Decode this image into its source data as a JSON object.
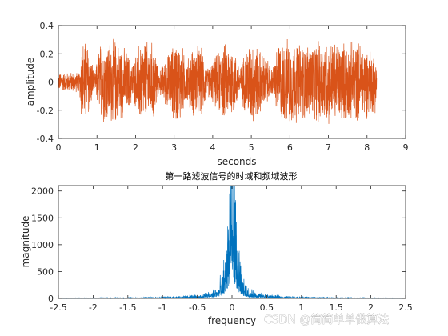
{
  "chart_data": [
    {
      "type": "line",
      "title": "",
      "xlabel": "seconds",
      "ylabel": "amplitude",
      "xlim": [
        0,
        9
      ],
      "ylim": [
        -0.4,
        0.4
      ],
      "xticks": [
        "0",
        "1",
        "2",
        "3",
        "4",
        "5",
        "6",
        "7",
        "8",
        "9"
      ],
      "yticks": [
        "0.4",
        "0.2",
        "0",
        "-0.2",
        "-0.4"
      ],
      "color": "#D95319",
      "signal_end": 8.25,
      "envelope": {
        "t": [
          0.0,
          0.55,
          0.6,
          0.75,
          0.85,
          0.95,
          1.05,
          1.3,
          1.5,
          1.75,
          1.95,
          2.1,
          2.5,
          2.6,
          3.05,
          3.2,
          3.3,
          3.55,
          3.75,
          3.85,
          4.3,
          4.5,
          4.7,
          4.95,
          5.05,
          5.4,
          5.55,
          5.7,
          6.0,
          6.3,
          6.9,
          7.1,
          7.5,
          7.8,
          8.25
        ],
        "amp": [
          0.07,
          0.08,
          0.33,
          0.33,
          0.2,
          0.05,
          0.3,
          0.33,
          0.33,
          0.25,
          0.15,
          0.33,
          0.3,
          0.08,
          0.33,
          0.3,
          0.15,
          0.3,
          0.25,
          0.1,
          0.3,
          0.3,
          0.12,
          0.33,
          0.32,
          0.18,
          0.1,
          0.32,
          0.33,
          0.3,
          0.33,
          0.33,
          0.3,
          0.32,
          0.22
        ]
      }
    },
    {
      "type": "line",
      "title": "第一路滤波信号的时域和频域波形",
      "xlabel": "frequency",
      "ylabel": "magnitude",
      "xlim": [
        -2.5,
        2.5
      ],
      "ylim": [
        0,
        2100
      ],
      "xticks": [
        "-2.5",
        "-2",
        "-1.5",
        "-1",
        "-0.5",
        "0",
        "0.5",
        "1",
        "1.5",
        "2",
        "2.5"
      ],
      "yticks": [
        "2000",
        "1500",
        "1000",
        "500",
        "0"
      ],
      "color": "#0072BD",
      "data_range": [
        -2.45,
        2.45
      ],
      "profile": {
        "f": [
          0.0,
          0.03,
          0.06,
          0.1,
          0.15,
          0.2,
          0.3,
          0.5,
          0.7,
          1.0,
          1.5,
          2.45
        ],
        "mag": [
          2100,
          2100,
          1200,
          700,
          350,
          200,
          110,
          60,
          40,
          25,
          12,
          5
        ]
      }
    }
  ],
  "watermark": "CSDN @简简单单做算法"
}
